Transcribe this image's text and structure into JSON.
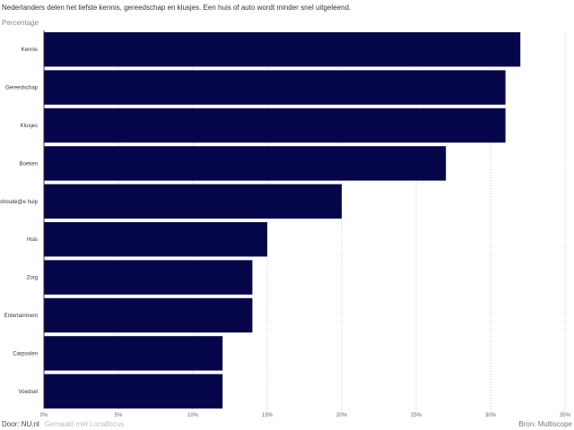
{
  "subtitle": "Nederlanders delen het liefste kennis, gereedschap en klusjes. Een huis of auto wordt minder snel uitgeleend.",
  "unit_label": "Percentage",
  "footer": {
    "maker": "Door: NU.nl",
    "tool": "Gemaakt met Localfocus",
    "source": "Bron: Multiscope"
  },
  "chart_data": {
    "type": "bar",
    "orientation": "horizontal",
    "categories": [
      "Kennis",
      "Gereedschap",
      "Klusjes",
      "Boeken",
      "Huishoude@e hulp",
      "Huis",
      "Zorg",
      "Entertainment",
      "Carpoolen",
      "Voedsel"
    ],
    "values": [
      32,
      31,
      31,
      27,
      20,
      15,
      14,
      14,
      12,
      12
    ],
    "xlim": [
      0,
      35
    ],
    "ticks": [
      "0%",
      "5%",
      "10%",
      "15%",
      "20%",
      "25%",
      "30%",
      "35%"
    ],
    "tick_values": [
      0,
      5,
      10,
      15,
      20,
      25,
      30,
      35
    ],
    "grid": "vertical dotted",
    "bar_color": "#05054a"
  }
}
